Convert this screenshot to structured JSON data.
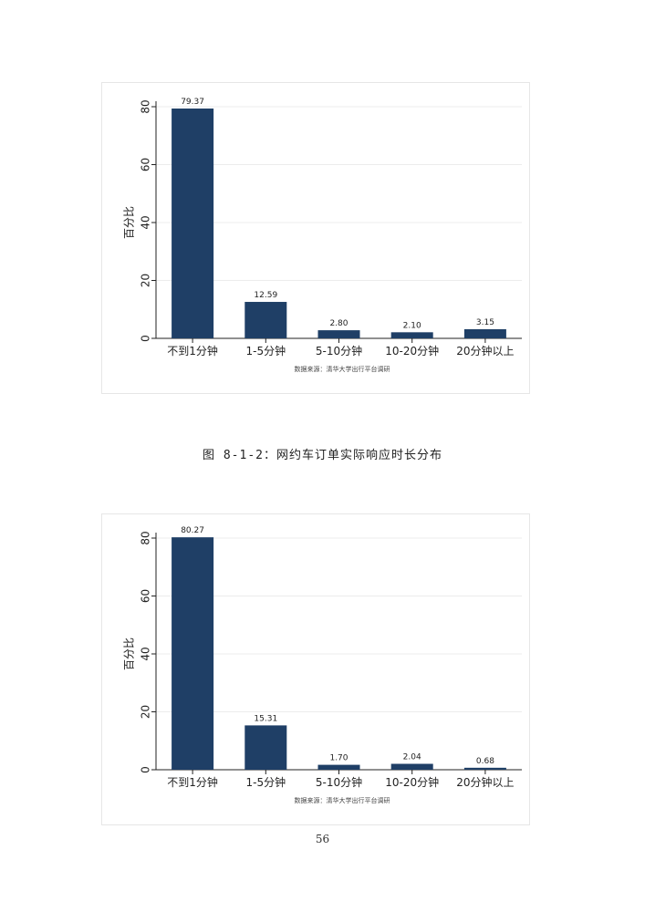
{
  "chart_data": [
    {
      "type": "bar",
      "categories": [
        "不到1分钟",
        "1-5分钟",
        "5-10分钟",
        "10-20分钟",
        "20分钟以上"
      ],
      "values": [
        79.37,
        12.59,
        2.8,
        2.1,
        3.15
      ],
      "value_labels": [
        "79.37",
        "12.59",
        "2.80",
        "2.10",
        "3.15"
      ],
      "ylabel": "百分比",
      "yticks": [
        "0",
        "20",
        "40",
        "60",
        "80"
      ],
      "ylim": [
        0,
        80
      ],
      "grid": true,
      "bar_color": "#1f3f66",
      "note": "数据来源：清华大学出行平台调研"
    },
    {
      "type": "bar",
      "categories": [
        "不到1分钟",
        "1-5分钟",
        "5-10分钟",
        "10-20分钟",
        "20分钟以上"
      ],
      "values": [
        80.27,
        15.31,
        1.7,
        2.04,
        0.68
      ],
      "value_labels": [
        "80.27",
        "15.31",
        "1.70",
        "2.04",
        "0.68"
      ],
      "ylabel": "百分比",
      "yticks": [
        "0",
        "20",
        "40",
        "60",
        "80"
      ],
      "ylim": [
        0,
        80
      ],
      "grid": true,
      "bar_color": "#1f3f66",
      "note": "数据来源：清华大学出行平台调研"
    }
  ],
  "caption": "图 8-1-2：网约车订单实际响应时长分布",
  "page_number": "56"
}
